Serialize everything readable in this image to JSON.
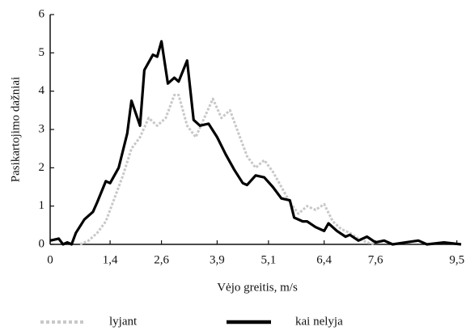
{
  "chart_data": {
    "type": "line",
    "xlabel": "Vėjo greitis, m/s",
    "ylabel": "Pasikartojimo dažniai",
    "xlim": [
      0,
      9.6
    ],
    "xticks": [
      0,
      {
        "value": 1.4,
        "label": "1,4"
      },
      {
        "value": 2.6,
        "label": "2,6"
      },
      {
        "value": 3.9,
        "label": "3,9"
      },
      {
        "value": 5.1,
        "label": "5,1"
      },
      {
        "value": 6.4,
        "label": "6,4"
      },
      {
        "value": 7.6,
        "label": "7,6"
      },
      {
        "value": 9.5,
        "label": "9,5"
      }
    ],
    "ylim": [
      0,
      6
    ],
    "yticks": [
      0,
      1,
      2,
      3,
      4,
      5,
      6
    ],
    "legend": "bottom",
    "series": [
      {
        "name": "lyjant",
        "color": "#c8c8c8",
        "dashed": true,
        "x": [
          0.7,
          0.9,
          1.1,
          1.3,
          1.5,
          1.7,
          1.9,
          2.1,
          2.3,
          2.5,
          2.7,
          2.9,
          3.0,
          3.2,
          3.4,
          3.6,
          3.8,
          4.0,
          4.2,
          4.4,
          4.6,
          4.8,
          5.0,
          5.2,
          5.4,
          5.6,
          5.8,
          6.0,
          6.2,
          6.4,
          6.6,
          6.8,
          7.0,
          7.2,
          7.4,
          7.6
        ],
        "values": [
          0.0,
          0.1,
          0.3,
          0.6,
          1.2,
          1.8,
          2.5,
          2.8,
          3.3,
          3.1,
          3.3,
          3.9,
          3.9,
          3.1,
          2.8,
          3.3,
          3.8,
          3.3,
          3.5,
          2.9,
          2.3,
          2.0,
          2.2,
          1.9,
          1.5,
          1.1,
          0.8,
          1.0,
          0.9,
          1.05,
          0.6,
          0.4,
          0.3,
          0.15,
          0.05,
          0.0
        ]
      },
      {
        "name": "kai nelyja",
        "color": "#000000",
        "dashed": false,
        "x": [
          0,
          0.2,
          0.3,
          0.4,
          0.5,
          0.6,
          0.8,
          1.0,
          1.1,
          1.3,
          1.4,
          1.6,
          1.8,
          1.9,
          2.1,
          2.2,
          2.4,
          2.5,
          2.6,
          2.75,
          2.9,
          3.0,
          3.2,
          3.35,
          3.5,
          3.7,
          3.9,
          4.1,
          4.3,
          4.5,
          4.6,
          4.8,
          5.0,
          5.2,
          5.4,
          5.6,
          5.7,
          5.9,
          6.0,
          6.2,
          6.4,
          6.5,
          6.7,
          6.9,
          7.0,
          7.2,
          7.4,
          7.6,
          7.8,
          8.0,
          8.3,
          8.6,
          8.8,
          9.2,
          9.6
        ],
        "values": [
          0.1,
          0.15,
          0.0,
          0.05,
          0.0,
          0.3,
          0.65,
          0.85,
          1.1,
          1.65,
          1.6,
          2.0,
          2.9,
          3.75,
          3.1,
          4.55,
          4.95,
          4.9,
          5.3,
          4.2,
          4.35,
          4.25,
          4.8,
          3.25,
          3.1,
          3.15,
          2.8,
          2.35,
          1.95,
          1.6,
          1.55,
          1.8,
          1.75,
          1.5,
          1.2,
          1.15,
          0.7,
          0.6,
          0.6,
          0.45,
          0.35,
          0.55,
          0.35,
          0.2,
          0.25,
          0.1,
          0.2,
          0.05,
          0.1,
          0.0,
          0.05,
          0.1,
          0.0,
          0.05,
          0.0
        ]
      }
    ]
  }
}
